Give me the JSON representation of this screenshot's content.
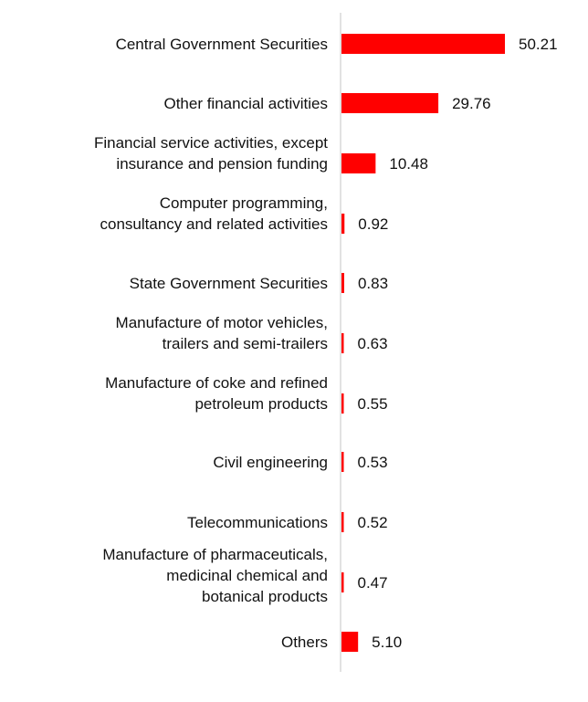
{
  "colors": {
    "bar": "#ff0000",
    "axis": "#d9d9d9",
    "text": "#111111"
  },
  "chart_data": {
    "type": "bar",
    "orientation": "horizontal",
    "grid": false,
    "categories": [
      [
        "Central Government Securities"
      ],
      [
        "Other financial activities"
      ],
      [
        "Financial service activities, except",
        "insurance and pension funding"
      ],
      [
        "Computer programming,",
        "consultancy and related activities"
      ],
      [
        "State Government Securities"
      ],
      [
        "Manufacture of motor vehicles,",
        "trailers and semi-trailers"
      ],
      [
        "Manufacture of coke and refined",
        "petroleum products"
      ],
      [
        "Civil engineering"
      ],
      [
        "Telecommunications"
      ],
      [
        "Manufacture of pharmaceuticals,",
        "medicinal chemical and",
        "botanical products"
      ],
      [
        "Others"
      ]
    ],
    "values": [
      50.21,
      29.76,
      10.48,
      0.92,
      0.83,
      0.63,
      0.55,
      0.53,
      0.52,
      0.47,
      5.1
    ],
    "value_labels": [
      "50.21",
      "29.76",
      "10.48",
      "0.92",
      "0.83",
      "0.63",
      "0.55",
      "0.53",
      "0.52",
      "0.47",
      "5.10"
    ],
    "xlim": [
      0,
      50.21
    ]
  }
}
